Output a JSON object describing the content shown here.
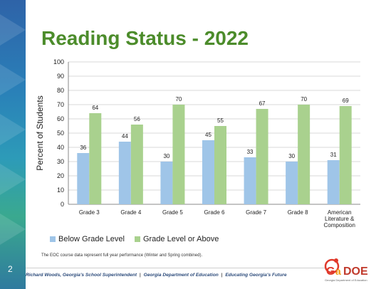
{
  "slide": {
    "number": "2",
    "title": "Reading Status - 2022",
    "footnote": "The EOC course data represent full year performance (Winter and Spring combined)."
  },
  "footer": {
    "part1": "Richard Woods, Georgia's School Superintendent",
    "part2": "Georgia Department of Education",
    "part3": "Educating Georgia's Future",
    "separator": "|",
    "logo_text": "GaDOE",
    "logo_subtext": "Georgia Department of Education"
  },
  "colors": {
    "below": "#9fc5e8",
    "above": "#a9d18e",
    "title": "#4c8c2b"
  },
  "chart_data": {
    "type": "bar",
    "title": "",
    "xlabel": "",
    "ylabel": "Percent of Students",
    "ylim": [
      0,
      100
    ],
    "yticks": [
      0,
      10,
      20,
      30,
      40,
      50,
      60,
      70,
      80,
      90,
      100
    ],
    "grid": true,
    "legend_position": "bottom",
    "categories": [
      [
        "Grade 3"
      ],
      [
        "Grade 4"
      ],
      [
        "Grade 5"
      ],
      [
        "Grade 6"
      ],
      [
        "Grade 7"
      ],
      [
        "Grade 8"
      ],
      [
        "American",
        "Literature &",
        "Composition"
      ]
    ],
    "series": [
      {
        "name": "Below Grade Level",
        "color": "#9fc5e8",
        "values": [
          36,
          44,
          30,
          45,
          33,
          30,
          31
        ]
      },
      {
        "name": "Grade Level or Above",
        "color": "#a9d18e",
        "values": [
          64,
          56,
          70,
          55,
          67,
          70,
          69
        ]
      }
    ]
  }
}
